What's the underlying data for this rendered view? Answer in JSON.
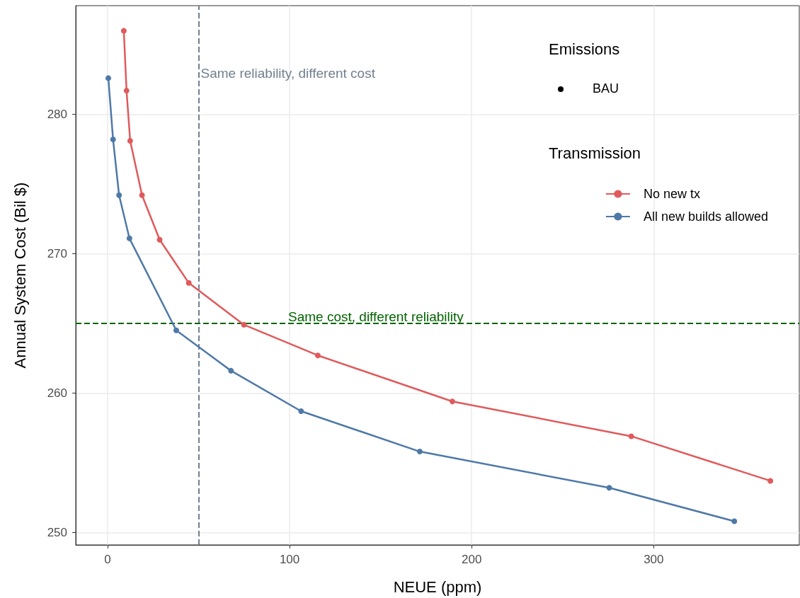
{
  "chart_data": {
    "type": "line",
    "xlabel": "NEUE (ppm)",
    "ylabel": "Annual System Cost (Bil $)",
    "legend_title": "Transmission",
    "annotations": [
      "Emissions",
      "BAU"
    ],
    "xlim": [
      -17.5,
      380
    ],
    "xticks": [
      0,
      100,
      200,
      300
    ],
    "ylim": [
      249.1,
      287.8
    ],
    "yticks": [
      250,
      260,
      270,
      280
    ],
    "grid": true,
    "legend": "top right",
    "marker": "circle",
    "line_style": "solid",
    "series": [
      {
        "name": "No new tx",
        "color": "#e05a5c",
        "x": [
          8.9,
          10.4,
          12.4,
          18.9,
          28.6,
          44.6,
          74.9,
          115.5,
          189.4,
          287.7,
          364.1
        ],
        "values": [
          286.0,
          281.7,
          278.1,
          274.2,
          271.0,
          267.9,
          264.9,
          262.7,
          259.4,
          256.9,
          253.7
        ]
      },
      {
        "name": "All new builds allowed",
        "color": "#4e79a7",
        "x": [
          0.4,
          3.0,
          6.3,
          12.0,
          37.7,
          67.8,
          106.3,
          171.5,
          275.6,
          344.3
        ],
        "values": [
          282.6,
          278.2,
          274.2,
          271.1,
          264.5,
          261.6,
          258.7,
          255.8,
          253.2,
          250.8
        ]
      }
    ],
    "ref_lines": [
      {
        "axis": "x",
        "value": 50,
        "label": "Same reliability, different cost",
        "color": "#708090",
        "line_style": "dashed"
      },
      {
        "axis": "y",
        "value": 265,
        "label": "Same cost, different reliability",
        "color": "#006400",
        "line_style": "dashed"
      }
    ]
  }
}
